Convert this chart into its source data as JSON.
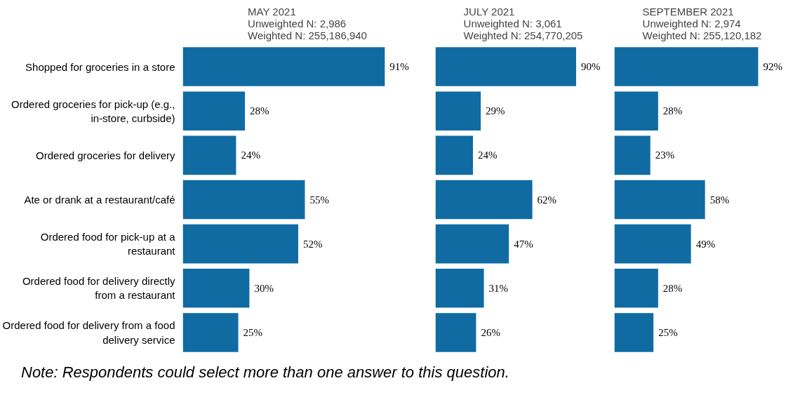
{
  "chart_data": [
    {
      "type": "bar",
      "orientation": "horizontal",
      "title": "MAY 2021\nUnweighted N: 2,986\nWeighted N: 255,186,940",
      "categories": [
        "Shopped for groceries in a store",
        "Ordered groceries for pick-up (e.g., in-store, curbside)",
        "Ordered groceries for delivery",
        "Ate or drank at a restaurant/café",
        "Ordered food for pick-up at a restaurant",
        "Ordered food for delivery directly from a restaurant",
        "Ordered food for delivery from a food delivery service"
      ],
      "values": [
        91,
        28,
        24,
        55,
        52,
        30,
        25
      ],
      "value_labels": [
        "91%",
        "28%",
        "24%",
        "55%",
        "52%",
        "30%",
        "25%"
      ],
      "color": "#106ba3",
      "tick_labels": "y",
      "annotations": [
        "Note: Respondents could select more than one answer to this question."
      ]
    },
    {
      "type": "bar",
      "orientation": "horizontal",
      "title": "JULY 2021\nUnweighted N: 3,061\nWeighted N: 254,770,205",
      "categories": [
        "Shopped for groceries in a store",
        "Ordered groceries for pick-up (e.g., in-store, curbside)",
        "Ordered groceries for delivery",
        "Ate or drank at a restaurant/café",
        "Ordered food for pick-up at a restaurant",
        "Ordered food for delivery directly from a restaurant",
        "Ordered food for delivery from a food delivery service"
      ],
      "values": [
        90,
        29,
        24,
        62,
        47,
        31,
        26
      ],
      "value_labels": [
        "90%",
        "29%",
        "24%",
        "62%",
        "47%",
        "31%",
        "26%"
      ],
      "color": "#106ba3",
      "tick_labels": false
    },
    {
      "type": "bar",
      "orientation": "horizontal",
      "title": "SEPTEMBER 2021\nUnweighted N: 2,974\nWeighted N: 255,120,182",
      "categories": [
        "Shopped for groceries in a store",
        "Ordered groceries for pick-up (e.g., in-store, curbside)",
        "Ordered groceries for delivery",
        "Ate or drank at a restaurant/café",
        "Ordered food for pick-up at a restaurant",
        "Ordered food for delivery directly from a restaurant",
        "Ordered food for delivery from a food delivery service"
      ],
      "values": [
        92,
        28,
        23,
        58,
        49,
        28,
        25
      ],
      "value_labels": [
        "92%",
        "28%",
        "23%",
        "58%",
        "49%",
        "28%",
        "25%"
      ],
      "color": "#106ba3",
      "tick_labels": false
    }
  ]
}
